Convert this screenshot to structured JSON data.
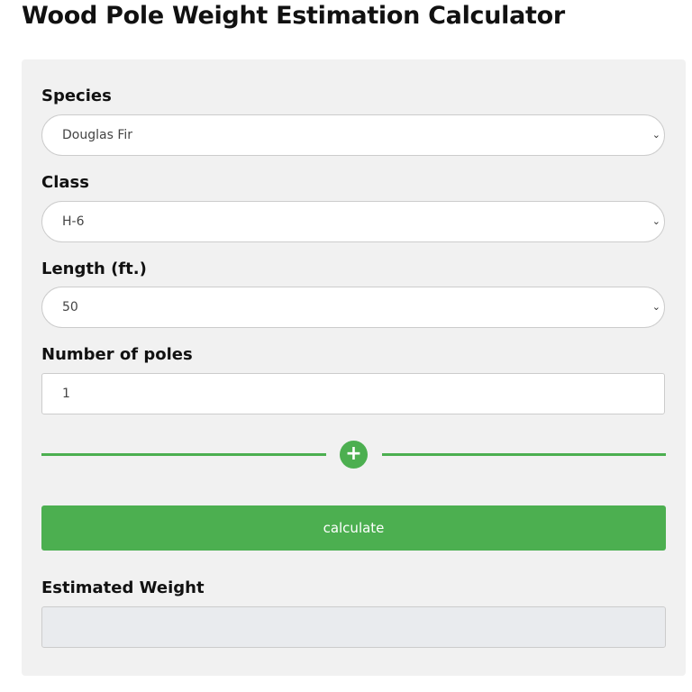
{
  "title": "Wood Pole Weight Estimation Calculator",
  "form": {
    "species": {
      "label": "Species",
      "value": "Douglas Fir"
    },
    "class": {
      "label": "Class",
      "value": "H-6"
    },
    "length": {
      "label": "Length (ft.)",
      "value": "50"
    },
    "poles": {
      "label": "Number of poles",
      "value": "1"
    },
    "add_icon": "plus-icon",
    "calculate_label": "calculate",
    "result": {
      "label": "Estimated Weight",
      "value": ""
    }
  },
  "colors": {
    "accent": "#4caf50",
    "panel": "#f1f1f1"
  }
}
